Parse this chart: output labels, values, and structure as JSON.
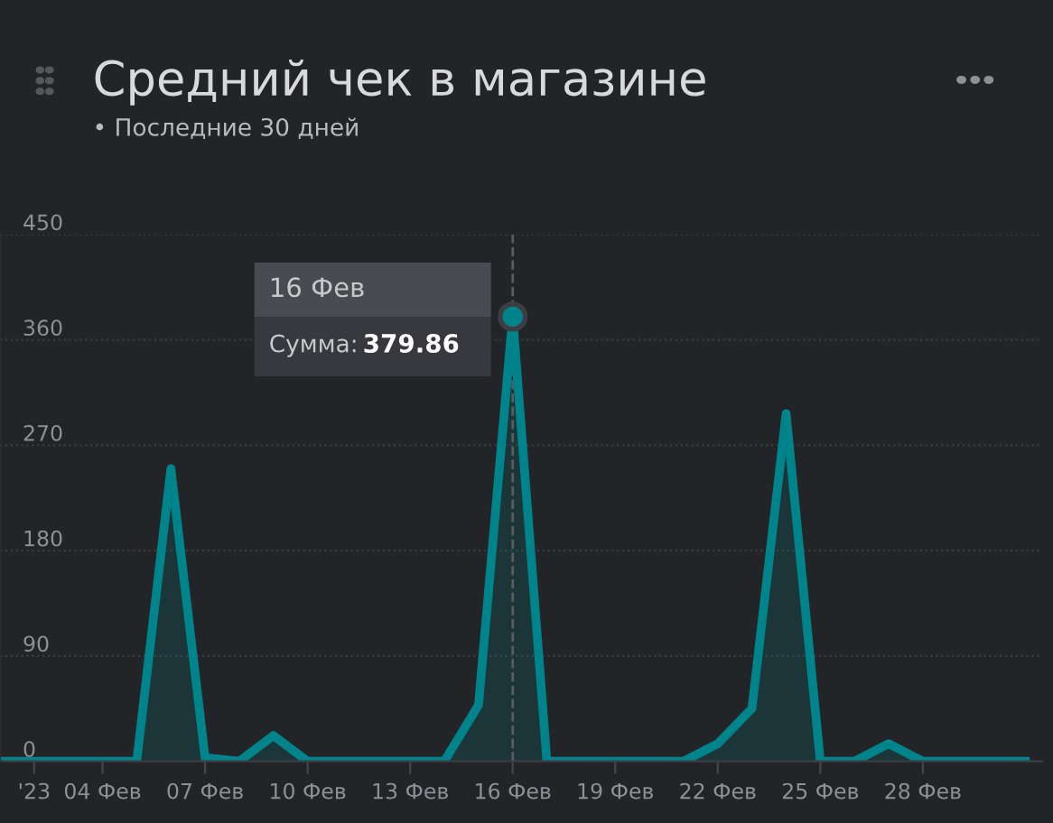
{
  "chart_data": {
    "type": "area",
    "title": "Средний чек в магазине",
    "subtitle": "• Последние 30 дней",
    "x": [
      "2023-02-01",
      "2023-02-02",
      "2023-02-03",
      "2023-02-04",
      "2023-02-05",
      "2023-02-06",
      "2023-02-07",
      "2023-02-08",
      "2023-02-09",
      "2023-02-10",
      "2023-02-11",
      "2023-02-12",
      "2023-02-13",
      "2023-02-14",
      "2023-02-15",
      "2023-02-16",
      "2023-02-17",
      "2023-02-18",
      "2023-02-19",
      "2023-02-20",
      "2023-02-21",
      "2023-02-22",
      "2023-02-23",
      "2023-02-24",
      "2023-02-25",
      "2023-02-26",
      "2023-02-27",
      "2023-02-28",
      "2023-03-01",
      "2023-03-02",
      "2023-03-03"
    ],
    "series": [
      {
        "color": "#00848c",
        "values": [
          0,
          0,
          0,
          0,
          0,
          250,
          3,
          0,
          22,
          0,
          0,
          0,
          0,
          0,
          48,
          379.86,
          0,
          0,
          0,
          0,
          0,
          15,
          45,
          297,
          0,
          0,
          15,
          0,
          0,
          0,
          0
        ]
      }
    ],
    "xlim": [
      "2023-02-01",
      "2023-03-03T12:00"
    ],
    "xticks": [
      {
        "value": "2023-02-02",
        "label": "'23"
      },
      {
        "value": "2023-02-04",
        "label": "04 Фев"
      },
      {
        "value": "2023-02-07",
        "label": "07 Фев"
      },
      {
        "value": "2023-02-10",
        "label": "10 Фев"
      },
      {
        "value": "2023-02-13",
        "label": "13 Фев"
      },
      {
        "value": "2023-02-16",
        "label": "16 Фев"
      },
      {
        "value": "2023-02-19",
        "label": "19 Фев"
      },
      {
        "value": "2023-02-22",
        "label": "22 Фев"
      },
      {
        "value": "2023-02-25",
        "label": "25 Фев"
      },
      {
        "value": "2023-02-28",
        "label": "28 Фев"
      }
    ],
    "ylim": [
      0,
      450
    ],
    "yticks": [
      0,
      90,
      180,
      270,
      360,
      450
    ],
    "grid": "y",
    "legend": false,
    "marker": "none",
    "line_style": "solid",
    "ref_lines": [
      {
        "axis": "x",
        "value": "2023-02-16",
        "color": "#5a5c62",
        "line_style": "dashed"
      }
    ],
    "annotations": [
      "16 Фев",
      "Сумма:",
      "379.86"
    ]
  }
}
